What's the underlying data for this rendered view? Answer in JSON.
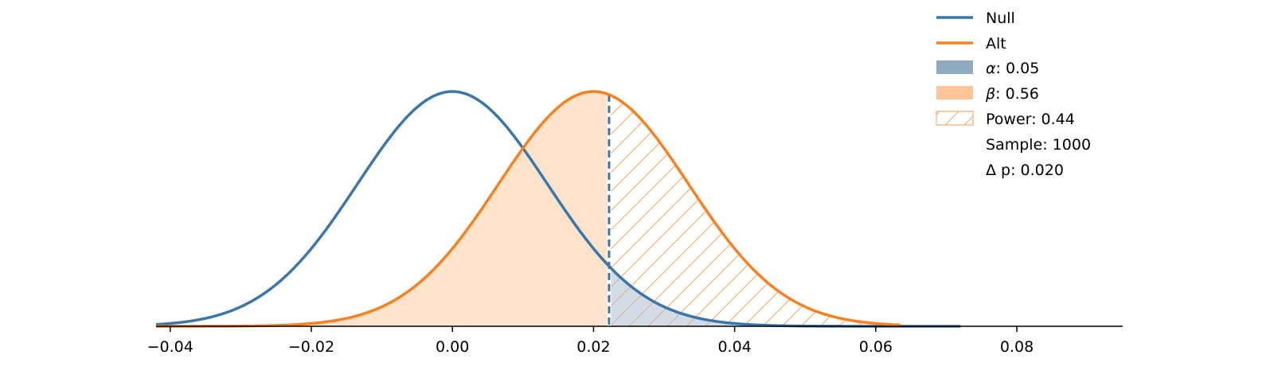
{
  "chart_data": {
    "type": "area",
    "title": "",
    "xlabel": "",
    "ylabel": "",
    "xlim": [
      -0.042,
      0.095
    ],
    "xticks": [
      -0.04,
      -0.02,
      0.0,
      0.02,
      0.04,
      0.06,
      0.08
    ],
    "xtick_labels": [
      "−0.04",
      "−0.02",
      "0.00",
      "0.02",
      "0.04",
      "0.06",
      "0.08"
    ],
    "grid": false,
    "legend_position": "top-right",
    "critical_value": 0.0222,
    "series": [
      {
        "name": "Null",
        "distribution": "normal",
        "mean": 0.0,
        "sd": 0.01345,
        "x_range": [
          -0.042,
          0.022
        ],
        "color": "#3a76a8"
      },
      {
        "name": "Alt",
        "distribution": "normal",
        "mean": 0.02,
        "sd": 0.01345,
        "x_range": [
          -0.042,
          0.0635
        ],
        "color": "#f7811f"
      }
    ],
    "regions": {
      "alpha": {
        "label_symbol": "α",
        "label_value": ": 0.05",
        "value": 0.05,
        "color": "#aebfd0"
      },
      "beta": {
        "label_symbol": "β",
        "label_value": ": 0.56",
        "value": 0.56,
        "color": "#fde3cc"
      },
      "power": {
        "label": "Power: 0.44",
        "value": 0.44,
        "color": "#f7811f"
      }
    },
    "annotations": {
      "sample": "Sample: 1000",
      "delta_p": "Δ p: 0.020"
    }
  }
}
